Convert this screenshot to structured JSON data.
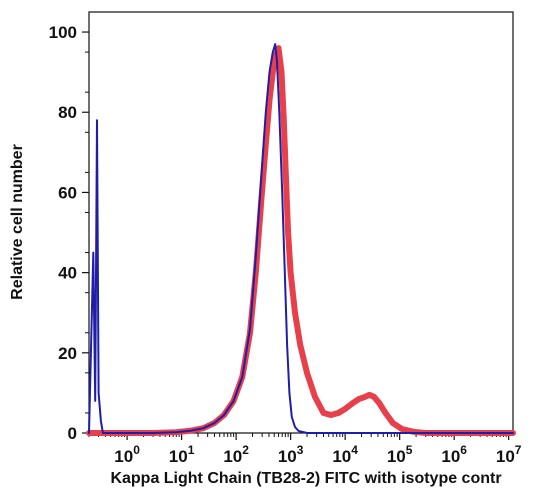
{
  "chart_data": {
    "type": "line",
    "title": "",
    "xlabel": "Kappa Light Chain (TB28-2) FITC with isotype contr",
    "ylabel": "Relative cell number",
    "x_scale": "log",
    "xlim": [
      0.2,
      12000000
    ],
    "ylim": [
      0,
      105
    ],
    "x_ticks": [
      {
        "value": 1,
        "base": "10",
        "exp": "0"
      },
      {
        "value": 10,
        "base": "10",
        "exp": "1"
      },
      {
        "value": 100,
        "base": "10",
        "exp": "2"
      },
      {
        "value": 1000,
        "base": "10",
        "exp": "3"
      },
      {
        "value": 10000,
        "base": "10",
        "exp": "4"
      },
      {
        "value": 100000,
        "base": "10",
        "exp": "5"
      },
      {
        "value": 1000000,
        "base": "10",
        "exp": "6"
      },
      {
        "value": 10000000,
        "base": "10",
        "exp": "7"
      }
    ],
    "y_ticks": [
      0,
      20,
      40,
      60,
      80,
      100
    ],
    "grid": false,
    "legend": "none",
    "series": [
      {
        "color": "#e8404a",
        "line_width": 6,
        "points": [
          [
            0.2,
            0
          ],
          [
            1,
            0
          ],
          [
            3,
            0
          ],
          [
            8,
            0.2
          ],
          [
            15,
            0.6
          ],
          [
            25,
            1.2
          ],
          [
            40,
            2.5
          ],
          [
            60,
            4.5
          ],
          [
            90,
            8
          ],
          [
            130,
            14
          ],
          [
            180,
            25
          ],
          [
            230,
            40
          ],
          [
            290,
            58
          ],
          [
            350,
            72
          ],
          [
            410,
            83
          ],
          [
            470,
            90
          ],
          [
            530,
            94
          ],
          [
            600,
            96
          ],
          [
            680,
            90
          ],
          [
            750,
            78
          ],
          [
            830,
            62
          ],
          [
            900,
            50
          ],
          [
            1000,
            40
          ],
          [
            1200,
            30
          ],
          [
            1500,
            22
          ],
          [
            2000,
            15
          ],
          [
            2800,
            9
          ],
          [
            4000,
            5
          ],
          [
            5500,
            4.5
          ],
          [
            7500,
            5
          ],
          [
            10000,
            6
          ],
          [
            14000,
            7.5
          ],
          [
            18000,
            8.5
          ],
          [
            23000,
            9
          ],
          [
            28000,
            9.5
          ],
          [
            34000,
            9
          ],
          [
            42000,
            7.5
          ],
          [
            55000,
            5
          ],
          [
            75000,
            2.5
          ],
          [
            110000,
            1
          ],
          [
            180000,
            0.3
          ],
          [
            300000,
            0
          ],
          [
            1000000,
            0
          ],
          [
            12000000,
            0
          ]
        ]
      },
      {
        "color": "#1e1ea8",
        "line_width": 2,
        "points": [
          [
            0.2,
            0
          ],
          [
            0.24,
            45
          ],
          [
            0.26,
            8
          ],
          [
            0.28,
            78
          ],
          [
            0.3,
            10
          ],
          [
            0.33,
            3
          ],
          [
            0.36,
            0
          ],
          [
            1,
            0
          ],
          [
            3,
            0
          ],
          [
            8,
            0.2
          ],
          [
            15,
            0.6
          ],
          [
            25,
            1.2
          ],
          [
            40,
            2.5
          ],
          [
            60,
            4.5
          ],
          [
            90,
            8
          ],
          [
            130,
            14
          ],
          [
            180,
            26
          ],
          [
            230,
            44
          ],
          [
            290,
            64
          ],
          [
            350,
            80
          ],
          [
            410,
            90
          ],
          [
            470,
            95
          ],
          [
            520,
            97
          ],
          [
            560,
            93
          ],
          [
            620,
            80
          ],
          [
            700,
            60
          ],
          [
            780,
            40
          ],
          [
            860,
            22
          ],
          [
            950,
            10
          ],
          [
            1050,
            4
          ],
          [
            1200,
            1.5
          ],
          [
            1400,
            0.5
          ],
          [
            2000,
            0
          ],
          [
            3000,
            0
          ],
          [
            12000000,
            0
          ]
        ]
      }
    ]
  }
}
